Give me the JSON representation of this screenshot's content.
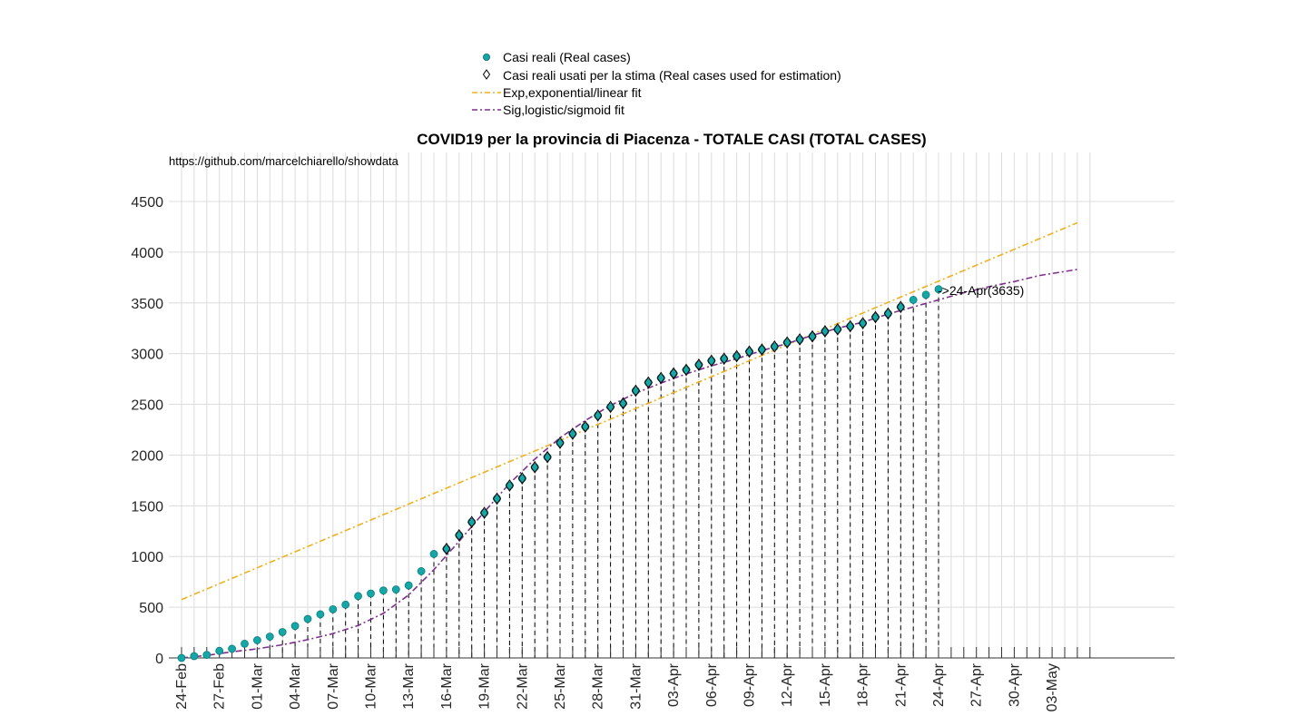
{
  "chart_data": {
    "type": "scatter",
    "title": "COVID19 per la provincia di Piacenza - TOTALE CASI (TOTAL CASES)",
    "watermark": "https://github.com/marcelchiarello/showdata",
    "annotation": "->24-Apr(3635)",
    "xlabel": "",
    "ylabel": "",
    "ylim": [
      0,
      5000
    ],
    "yticks": [
      0,
      500,
      1000,
      1500,
      2000,
      2500,
      3000,
      3500,
      4000,
      4500
    ],
    "x_start_date": "24-Feb",
    "x_days": 72,
    "xtick_labels": [
      "24-Feb",
      "27-Feb",
      "01-Mar",
      "04-Mar",
      "07-Mar",
      "10-Mar",
      "13-Mar",
      "16-Mar",
      "19-Mar",
      "22-Mar",
      "25-Mar",
      "28-Mar",
      "31-Mar",
      "03-Apr",
      "06-Apr",
      "09-Apr",
      "12-Apr",
      "15-Apr",
      "18-Apr",
      "21-Apr",
      "24-Apr",
      "27-Apr",
      "30-Apr",
      "03-May"
    ],
    "grid": true,
    "legend_position": "top-center",
    "legend": [
      {
        "label": "Casi reali (Real cases)",
        "marker": "circle",
        "color": "#17a6a6"
      },
      {
        "label": "Casi reali usati per la stima (Real cases used for estimation)",
        "marker": "diamond",
        "color": "#000000"
      },
      {
        "label": "Exp,exponential/linear fit",
        "marker": "dashdot",
        "color": "#edb120"
      },
      {
        "label": "Sig,logistic/sigmoid fit",
        "marker": "dashdot",
        "color": "#7e2f8e"
      }
    ],
    "series": [
      {
        "name": "Casi reali (Real cases)",
        "dates": [
          "24-Feb",
          "25-Feb",
          "26-Feb",
          "27-Feb",
          "28-Feb",
          "29-Feb",
          "01-Mar",
          "02-Mar",
          "03-Mar",
          "04-Mar",
          "05-Mar",
          "06-Mar",
          "07-Mar",
          "08-Mar",
          "09-Mar",
          "10-Mar",
          "11-Mar",
          "12-Mar",
          "13-Mar",
          "14-Mar",
          "15-Mar",
          "16-Mar",
          "17-Mar",
          "18-Mar",
          "19-Mar",
          "20-Mar",
          "21-Mar",
          "22-Mar",
          "23-Mar",
          "24-Mar",
          "25-Mar",
          "26-Mar",
          "27-Mar",
          "28-Mar",
          "29-Mar",
          "30-Mar",
          "31-Mar",
          "01-Apr",
          "02-Apr",
          "03-Apr",
          "04-Apr",
          "05-Apr",
          "06-Apr",
          "07-Apr",
          "08-Apr",
          "09-Apr",
          "10-Apr",
          "11-Apr",
          "12-Apr",
          "13-Apr",
          "14-Apr",
          "15-Apr",
          "16-Apr",
          "17-Apr",
          "18-Apr",
          "19-Apr",
          "20-Apr",
          "21-Apr",
          "22-Apr",
          "23-Apr",
          "24-Apr"
        ],
        "values": [
          0,
          18,
          30,
          70,
          90,
          140,
          175,
          210,
          255,
          315,
          385,
          430,
          480,
          525,
          610,
          635,
          665,
          675,
          715,
          855,
          1025,
          1075,
          1210,
          1340,
          1430,
          1570,
          1700,
          1770,
          1880,
          1980,
          2120,
          2210,
          2280,
          2390,
          2475,
          2510,
          2635,
          2715,
          2760,
          2805,
          2840,
          2890,
          2930,
          2950,
          2975,
          3020,
          3040,
          3070,
          3110,
          3140,
          3170,
          3220,
          3240,
          3270,
          3300,
          3360,
          3395,
          3460,
          3530,
          3580,
          3635
        ]
      },
      {
        "name": "Casi reali usati per la stima (Real cases used for estimation)",
        "dates": [
          "16-Mar",
          "17-Mar",
          "18-Mar",
          "19-Mar",
          "20-Mar",
          "21-Mar",
          "22-Mar",
          "23-Mar",
          "24-Mar",
          "25-Mar",
          "26-Mar",
          "27-Mar",
          "28-Mar",
          "29-Mar",
          "30-Mar",
          "31-Mar",
          "01-Apr",
          "02-Apr",
          "03-Apr",
          "04-Apr",
          "05-Apr",
          "06-Apr",
          "07-Apr",
          "08-Apr",
          "09-Apr",
          "10-Apr",
          "11-Apr",
          "12-Apr",
          "13-Apr",
          "14-Apr",
          "15-Apr",
          "16-Apr",
          "17-Apr",
          "18-Apr",
          "19-Apr",
          "20-Apr",
          "21-Apr"
        ],
        "values": [
          1075,
          1210,
          1340,
          1430,
          1570,
          1700,
          1770,
          1880,
          1980,
          2120,
          2210,
          2280,
          2390,
          2475,
          2510,
          2635,
          2715,
          2760,
          2805,
          2840,
          2890,
          2930,
          2950,
          2975,
          3020,
          3040,
          3070,
          3110,
          3140,
          3170,
          3220,
          3240,
          3270,
          3300,
          3360,
          3395,
          3460
        ]
      },
      {
        "name": "Exp,exponential/linear fit",
        "dates": [
          "24-Feb",
          "05-May"
        ],
        "values": [
          575,
          4290
        ]
      },
      {
        "name": "Sig,logistic/sigmoid fit",
        "dates": [
          "24-Feb",
          "26-Feb",
          "28-Feb",
          "01-Mar",
          "03-Mar",
          "05-Mar",
          "07-Mar",
          "09-Mar",
          "11-Mar",
          "13-Mar",
          "15-Mar",
          "17-Mar",
          "19-Mar",
          "21-Mar",
          "23-Mar",
          "25-Mar",
          "27-Mar",
          "29-Mar",
          "31-Mar",
          "02-Apr",
          "04-Apr",
          "06-Apr",
          "08-Apr",
          "10-Apr",
          "12-Apr",
          "14-Apr",
          "16-Apr",
          "18-Apr",
          "20-Apr",
          "22-Apr",
          "24-Apr",
          "26-Apr",
          "28-Apr",
          "30-Apr",
          "02-May",
          "05-May"
        ],
        "values": [
          0,
          25,
          60,
          90,
          130,
          180,
          240,
          320,
          440,
          620,
          870,
          1150,
          1440,
          1720,
          1960,
          2170,
          2340,
          2490,
          2610,
          2710,
          2800,
          2880,
          2950,
          3030,
          3100,
          3180,
          3250,
          3310,
          3390,
          3460,
          3530,
          3600,
          3660,
          3710,
          3770,
          3830
        ]
      }
    ]
  }
}
